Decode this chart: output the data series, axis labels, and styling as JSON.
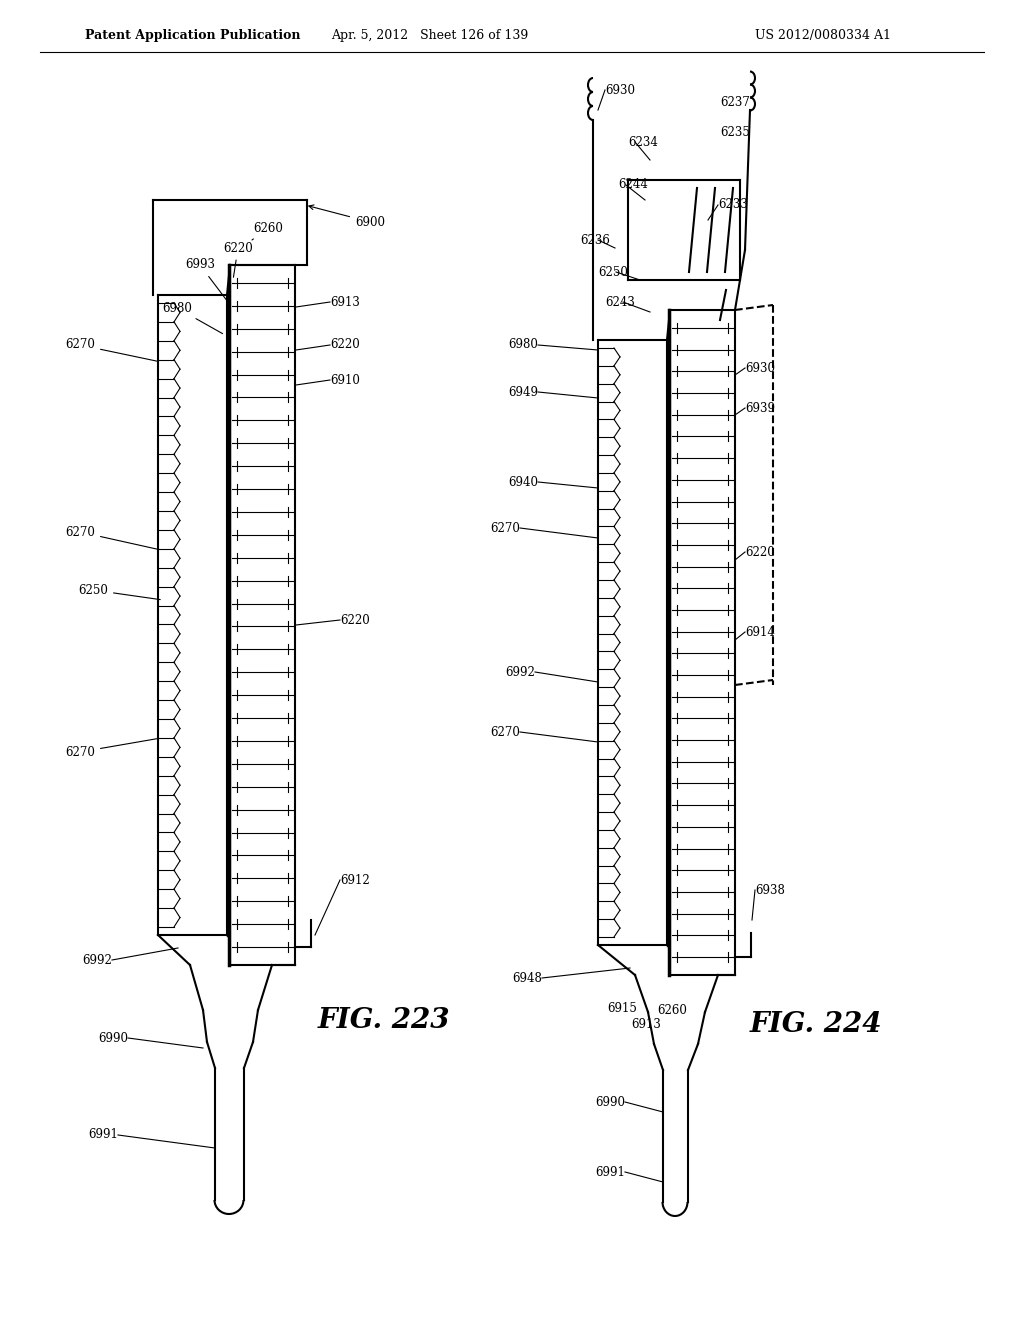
{
  "bg_color": "#ffffff",
  "header_left": "Patent Application Publication",
  "header_mid": "Apr. 5, 2012   Sheet 126 of 139",
  "header_right": "US 2012/0080334 A1",
  "fig223_label": "FIG. 223",
  "fig224_label": "FIG. 224",
  "line_color": "#000000",
  "line_width": 1.5,
  "thin_line": 0.8,
  "thick_line": 2.5
}
